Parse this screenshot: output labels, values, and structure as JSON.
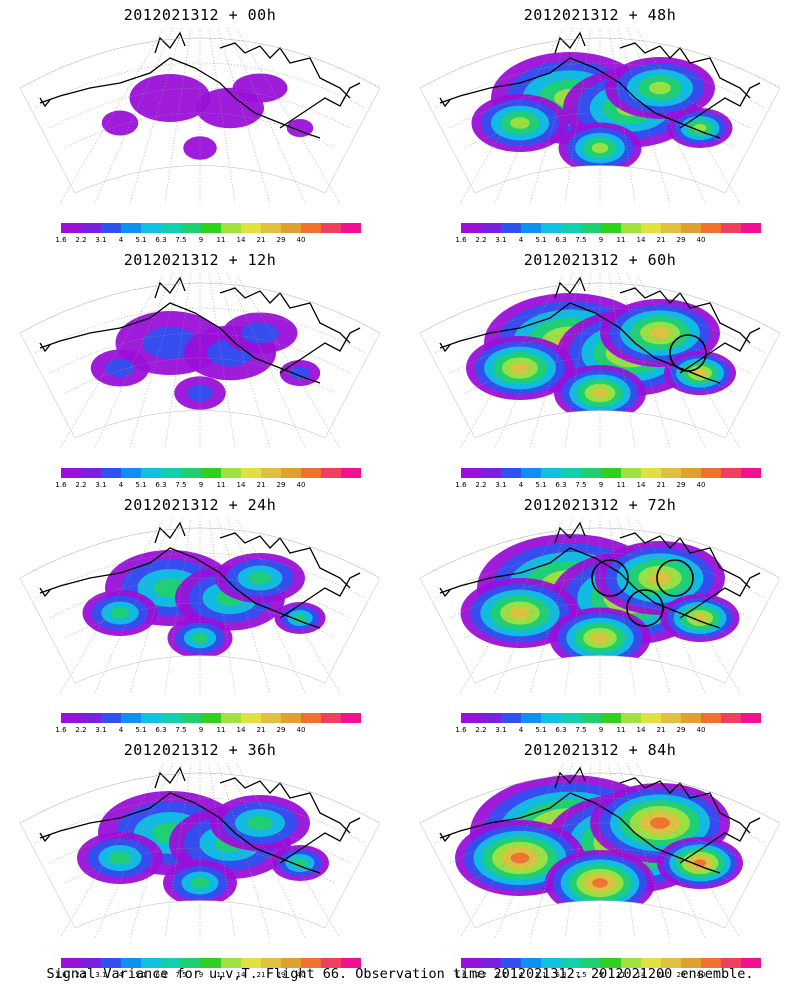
{
  "panels": [
    {
      "title": "2012021312 + 00h",
      "intensity": 0.15,
      "circles": 0
    },
    {
      "title": "2012021312 + 12h",
      "intensity": 0.35,
      "circles": 0
    },
    {
      "title": "2012021312 + 24h",
      "intensity": 0.5,
      "circles": 0
    },
    {
      "title": "2012021312 + 36h",
      "intensity": 0.6,
      "circles": 0
    },
    {
      "title": "2012021312 + 48h",
      "intensity": 0.7,
      "circles": 0
    },
    {
      "title": "2012021312 + 60h",
      "intensity": 0.8,
      "circles": 1
    },
    {
      "title": "2012021312 + 72h",
      "intensity": 0.9,
      "circles": 3
    },
    {
      "title": "2012021312 + 84h",
      "intensity": 1.0,
      "circles": 0
    }
  ],
  "colorbar": {
    "ticks": [
      "1.6",
      "2.2",
      "3.1",
      "4",
      "5.1",
      "6.3",
      "7.5",
      "9",
      "11",
      "14",
      "21",
      "29",
      "40"
    ],
    "colors": [
      "#9a10d8",
      "#7c20e0",
      "#3050f0",
      "#1090f0",
      "#10c0e0",
      "#10d0b0",
      "#20d070",
      "#30d020",
      "#a0e040",
      "#e0e040",
      "#e0c040",
      "#e0a030",
      "#f07030",
      "#f04060",
      "#f01090"
    ]
  },
  "caption": "Signal Variance for u,v,T. Flight 66. Observation time 2012021312. 2012021200 ensemble."
}
